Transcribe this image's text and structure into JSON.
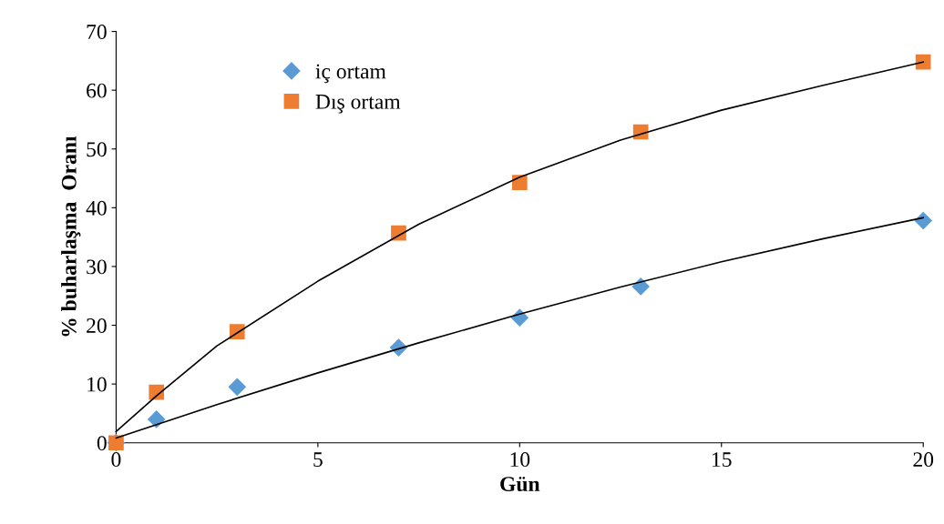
{
  "chart_data": {
    "type": "scatter",
    "xlabel": "Gün",
    "ylabel": "% buharlaşma  Oranı",
    "xlim": [
      0,
      20
    ],
    "ylim": [
      0,
      70
    ],
    "xticks": [
      0,
      5,
      10,
      15,
      20
    ],
    "yticks": [
      0,
      10,
      20,
      30,
      40,
      50,
      60,
      70
    ],
    "grid": false,
    "legend": "top left",
    "series": [
      {
        "name": "iç ortam",
        "color": "#5b9bd5",
        "marker": "diamond",
        "x": [
          0,
          1,
          3,
          7,
          10,
          13,
          20
        ],
        "values": [
          0,
          4,
          9.5,
          16.2,
          21.3,
          26.6,
          37.8
        ]
      },
      {
        "name": "Dış ortam",
        "color": "#ed7d31",
        "marker": "square",
        "x": [
          0,
          1,
          3,
          7,
          10,
          13,
          20
        ],
        "values": [
          0,
          8.6,
          18.9,
          35.7,
          44.3,
          52.9,
          64.8
        ]
      },
      {
        "type": "line",
        "color": "#000000",
        "marker": "none",
        "line_style": "solid",
        "x": [
          0,
          2.5,
          5,
          7.5,
          10,
          12.5,
          15,
          17.5,
          20
        ],
        "values": [
          0.8,
          6.5,
          11.9,
          17,
          21.9,
          26.5,
          30.8,
          34.7,
          38.3
        ]
      },
      {
        "type": "line",
        "color": "#000000",
        "marker": "none",
        "line_style": "solid",
        "x": [
          0,
          1,
          2.5,
          5,
          7.5,
          10,
          12.5,
          15,
          17.5,
          20
        ],
        "values": [
          1.9,
          8,
          16.5,
          27.5,
          37.2,
          45.2,
          51.5,
          56.6,
          60.8,
          64.8
        ]
      }
    ]
  }
}
